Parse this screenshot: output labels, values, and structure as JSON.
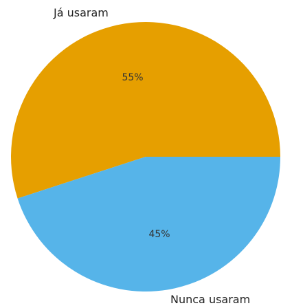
{
  "chart_data": {
    "type": "pie",
    "slices": [
      {
        "label": "Já usaram",
        "value": 55,
        "pct_label": "55%",
        "color": "#E69F00"
      },
      {
        "label": "Nunca usaram",
        "value": 45,
        "pct_label": "45%",
        "color": "#56B4E9"
      }
    ],
    "start_angle": "3 o'clock, counter-clockwise",
    "legend": "none"
  }
}
